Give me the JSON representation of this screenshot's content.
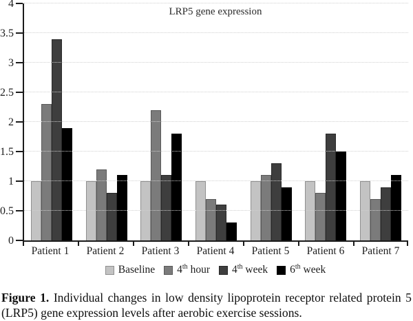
{
  "chart_data": {
    "type": "bar",
    "title": "LRP5 gene expression",
    "categories": [
      "Patient 1",
      "Patient 2",
      "Patient 3",
      "Patient 4",
      "Patient 5",
      "Patient 6",
      "Patient 7"
    ],
    "series": [
      {
        "name": "Baseline",
        "color": "#c3c3c3",
        "border": "#8f8f8f",
        "values": [
          1.0,
          1.0,
          1.0,
          1.0,
          1.0,
          1.0,
          1.0
        ],
        "legend": {
          "pre": "Baseline",
          "sup": "",
          "post": ""
        }
      },
      {
        "name": "4th hour",
        "color": "#7b7b7b",
        "border": "#585858",
        "values": [
          2.3,
          1.2,
          2.2,
          0.7,
          1.1,
          0.8,
          0.7
        ],
        "legend": {
          "pre": "4",
          "sup": "th",
          "post": " hour"
        }
      },
      {
        "name": "4th week",
        "color": "#3e3e3e",
        "border": "#282828",
        "values": [
          3.4,
          0.8,
          1.1,
          0.6,
          1.3,
          1.8,
          0.9
        ],
        "legend": {
          "pre": "4",
          "sup": "th",
          "post": " week"
        }
      },
      {
        "name": "6th week",
        "color": "#000000",
        "border": "#000000",
        "values": [
          1.9,
          1.1,
          1.8,
          0.3,
          0.9,
          1.5,
          1.1
        ],
        "legend": {
          "pre": "6",
          "sup": "th",
          "post": " week"
        }
      }
    ],
    "ylim": [
      0,
      4
    ],
    "ytick_step": 0.5,
    "ytick_labels": [
      "0",
      "0.5",
      "1",
      "1.5",
      "2",
      "2.5",
      "3",
      "3.5",
      "4"
    ],
    "grid": true,
    "legend_position": "bottom"
  },
  "caption": {
    "label": "Figure 1.",
    "text": " Individual changes in low density lipoprotein receptor related protein 5 (LRP5) gene expression levels after aerobic exercise sessions."
  }
}
